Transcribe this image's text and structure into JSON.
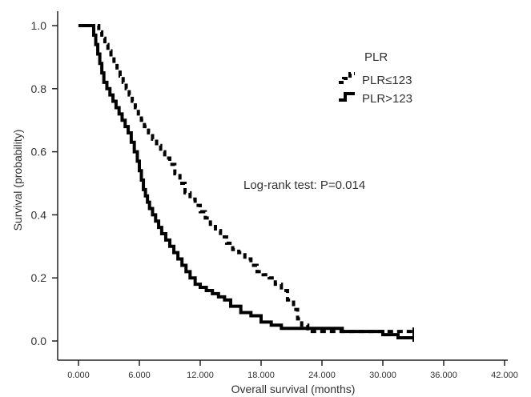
{
  "chart_data": {
    "type": "line",
    "step": true,
    "xlabel": "Overall survival (months)",
    "ylabel": "Survival (probability)",
    "xlim": [
      0,
      42
    ],
    "ylim": [
      0,
      1.0
    ],
    "x_ticks": [
      "0.000",
      "6.000",
      "12.000",
      "18.000",
      "24.000",
      "30.000",
      "36.000",
      "42.000"
    ],
    "y_ticks": [
      "0.0",
      "0.2",
      "0.4",
      "0.6",
      "0.8",
      "1.0"
    ],
    "grid": false,
    "legend": {
      "title": "PLR",
      "position": "top-right"
    },
    "annotation": "Log-rank test: P=0.014",
    "series": [
      {
        "name": "PLR≤123",
        "style": "dashed",
        "color": "#000000",
        "x": [
          0,
          2,
          2.3,
          2.6,
          2.9,
          3.2,
          3.5,
          3.8,
          4.1,
          4.4,
          4.7,
          5.0,
          5.3,
          5.6,
          5.9,
          6.2,
          6.5,
          6.9,
          7.3,
          7.7,
          8.1,
          8.5,
          9.0,
          9.5,
          10.0,
          10.5,
          11.0,
          11.5,
          12.0,
          12.5,
          13.0,
          13.5,
          14.0,
          14.6,
          15.2,
          15.8,
          16.4,
          17.0,
          17.6,
          18.2,
          18.8,
          19.4,
          20.0,
          20.6,
          21.2,
          21.6,
          22.0,
          22.6,
          23.5,
          33
        ],
        "y": [
          1.0,
          0.98,
          0.96,
          0.94,
          0.92,
          0.9,
          0.88,
          0.86,
          0.84,
          0.82,
          0.8,
          0.78,
          0.76,
          0.74,
          0.72,
          0.7,
          0.68,
          0.66,
          0.64,
          0.62,
          0.6,
          0.58,
          0.56,
          0.53,
          0.5,
          0.47,
          0.45,
          0.43,
          0.41,
          0.39,
          0.37,
          0.35,
          0.33,
          0.31,
          0.29,
          0.28,
          0.26,
          0.24,
          0.22,
          0.21,
          0.2,
          0.18,
          0.16,
          0.13,
          0.1,
          0.07,
          0.05,
          0.03,
          0.03,
          0.03
        ]
      },
      {
        "name": "PLR>123",
        "style": "solid",
        "color": "#000000",
        "x": [
          0,
          1.5,
          1.7,
          1.9,
          2.1,
          2.3,
          2.5,
          2.8,
          3.1,
          3.4,
          3.7,
          4.0,
          4.3,
          4.6,
          4.9,
          5.2,
          5.5,
          5.8,
          6.0,
          6.2,
          6.4,
          6.6,
          6.8,
          7.0,
          7.3,
          7.6,
          7.9,
          8.2,
          8.6,
          9.0,
          9.4,
          9.8,
          10.2,
          10.6,
          11.0,
          11.5,
          12.0,
          12.6,
          13.2,
          13.8,
          14.4,
          15.0,
          16.0,
          17.0,
          18.0,
          19.0,
          20.0,
          22.0,
          24.0,
          26.0,
          28.0,
          30.0,
          31.5,
          33
        ],
        "y": [
          1.0,
          0.97,
          0.94,
          0.91,
          0.88,
          0.85,
          0.82,
          0.8,
          0.78,
          0.76,
          0.74,
          0.72,
          0.7,
          0.68,
          0.66,
          0.63,
          0.6,
          0.57,
          0.54,
          0.51,
          0.48,
          0.46,
          0.44,
          0.42,
          0.4,
          0.38,
          0.36,
          0.34,
          0.32,
          0.3,
          0.28,
          0.26,
          0.24,
          0.22,
          0.2,
          0.18,
          0.17,
          0.16,
          0.15,
          0.14,
          0.13,
          0.11,
          0.09,
          0.08,
          0.06,
          0.05,
          0.04,
          0.04,
          0.04,
          0.03,
          0.03,
          0.02,
          0.01,
          0.01
        ]
      }
    ]
  }
}
